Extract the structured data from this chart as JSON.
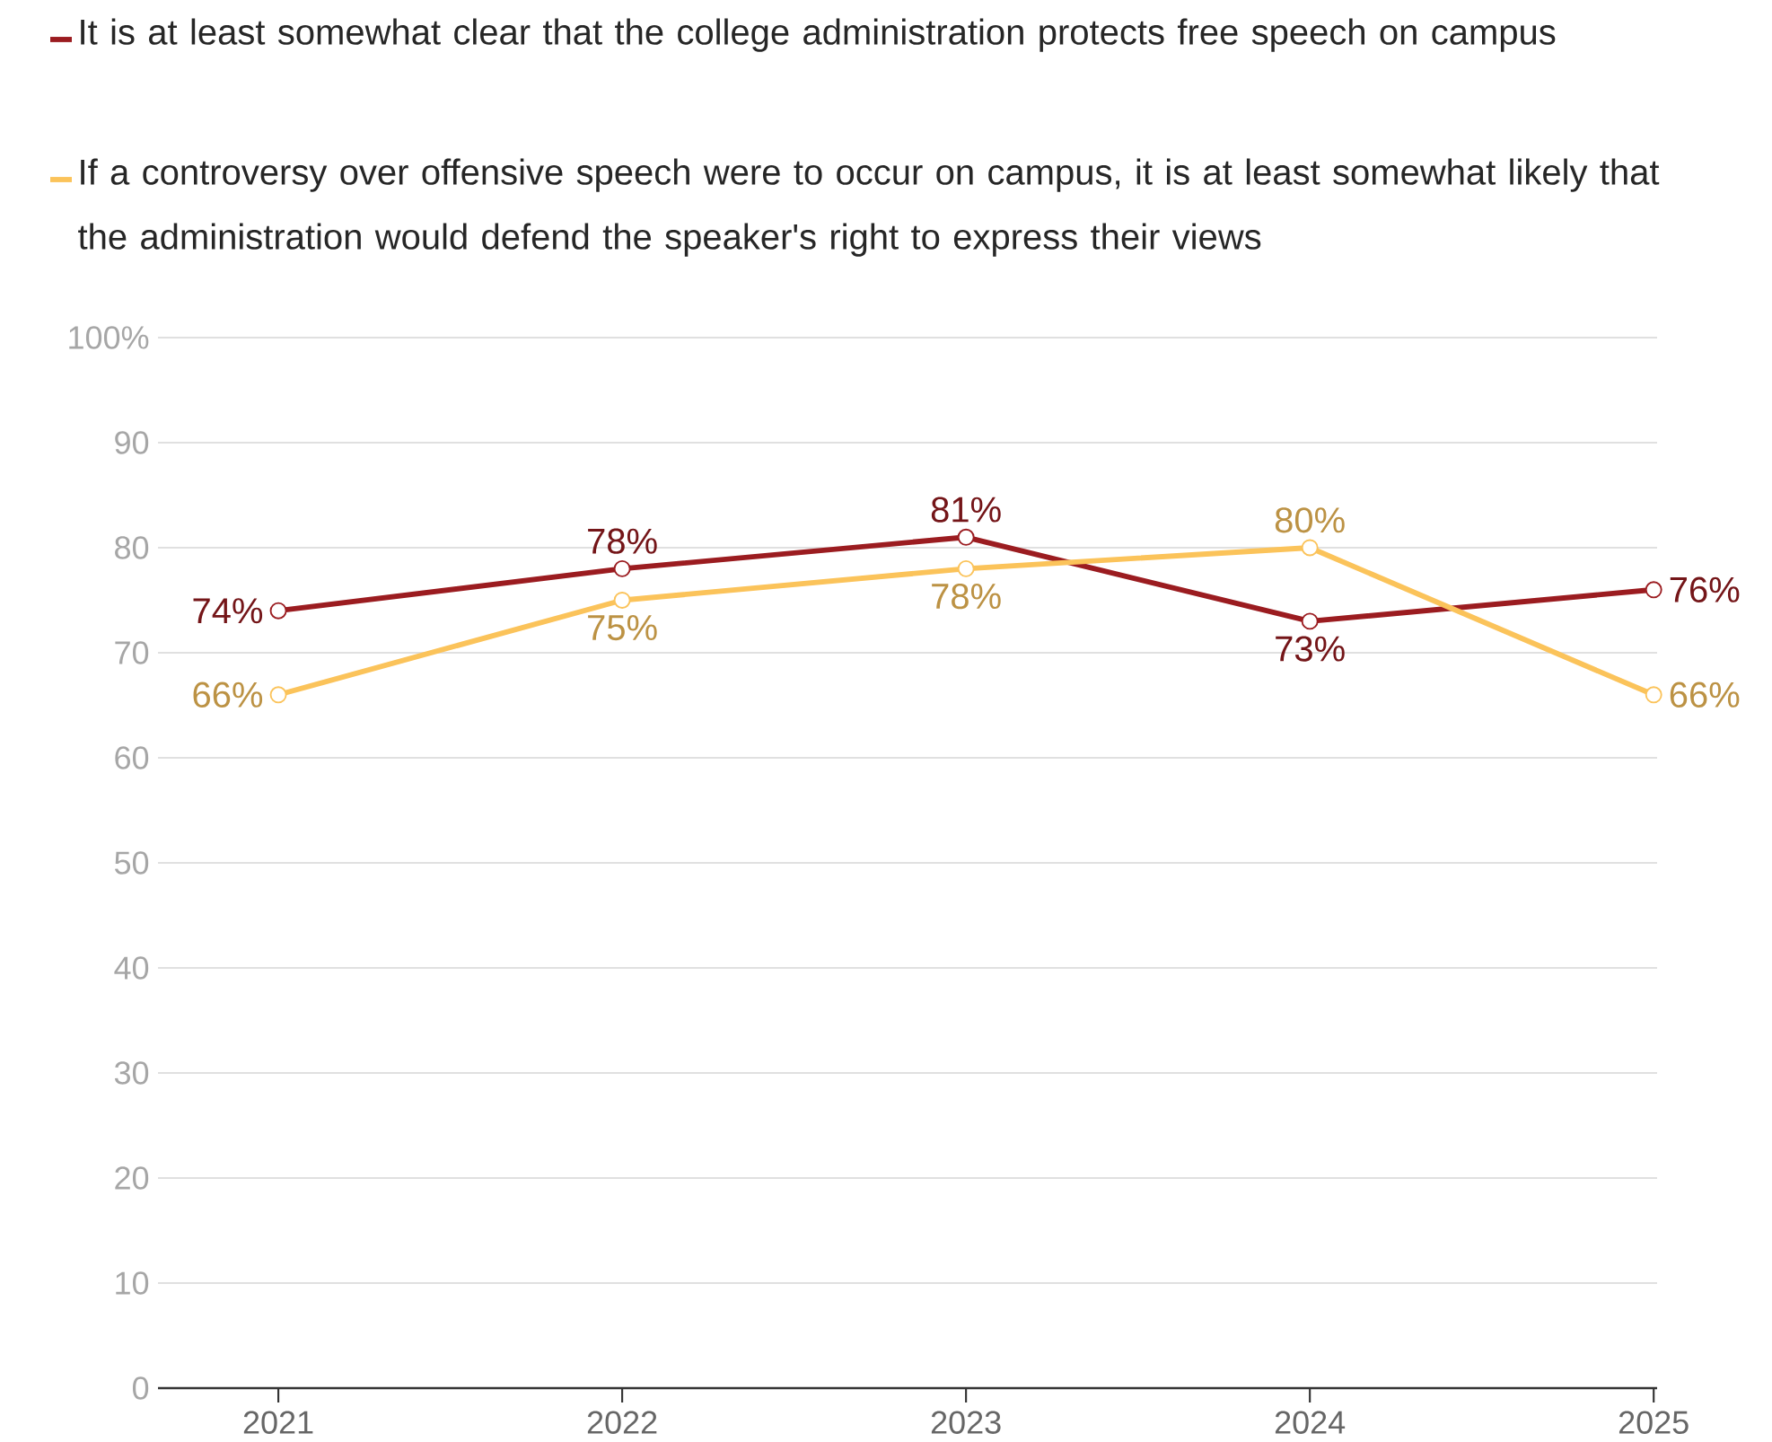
{
  "chart_data": {
    "type": "line",
    "categories": [
      "2021",
      "2022",
      "2023",
      "2024",
      "2025"
    ],
    "series": [
      {
        "name": "It is at least somewhat clear that the college administration protects free speech on campus",
        "color": "#9b1c20",
        "values": [
          74,
          78,
          81,
          73,
          76
        ],
        "value_labels": [
          "74%",
          "78%",
          "81%",
          "73%",
          "76%"
        ]
      },
      {
        "name": "If a controversy over offensive speech were to occur on campus, it is at least somewhat likely that the administration would defend the speaker's right to express their views",
        "color": "#fbc35a",
        "values": [
          66,
          75,
          78,
          80,
          66
        ],
        "value_labels": [
          "66%",
          "75%",
          "78%",
          "80%",
          "66%"
        ]
      }
    ],
    "ylim": [
      0,
      100
    ],
    "yticks": [
      0,
      10,
      20,
      30,
      40,
      50,
      60,
      70,
      80,
      90,
      {
        "value": 100,
        "label": "100%"
      }
    ],
    "grid": "y",
    "legend": "top",
    "marker": "circle",
    "line_style": "solid"
  }
}
